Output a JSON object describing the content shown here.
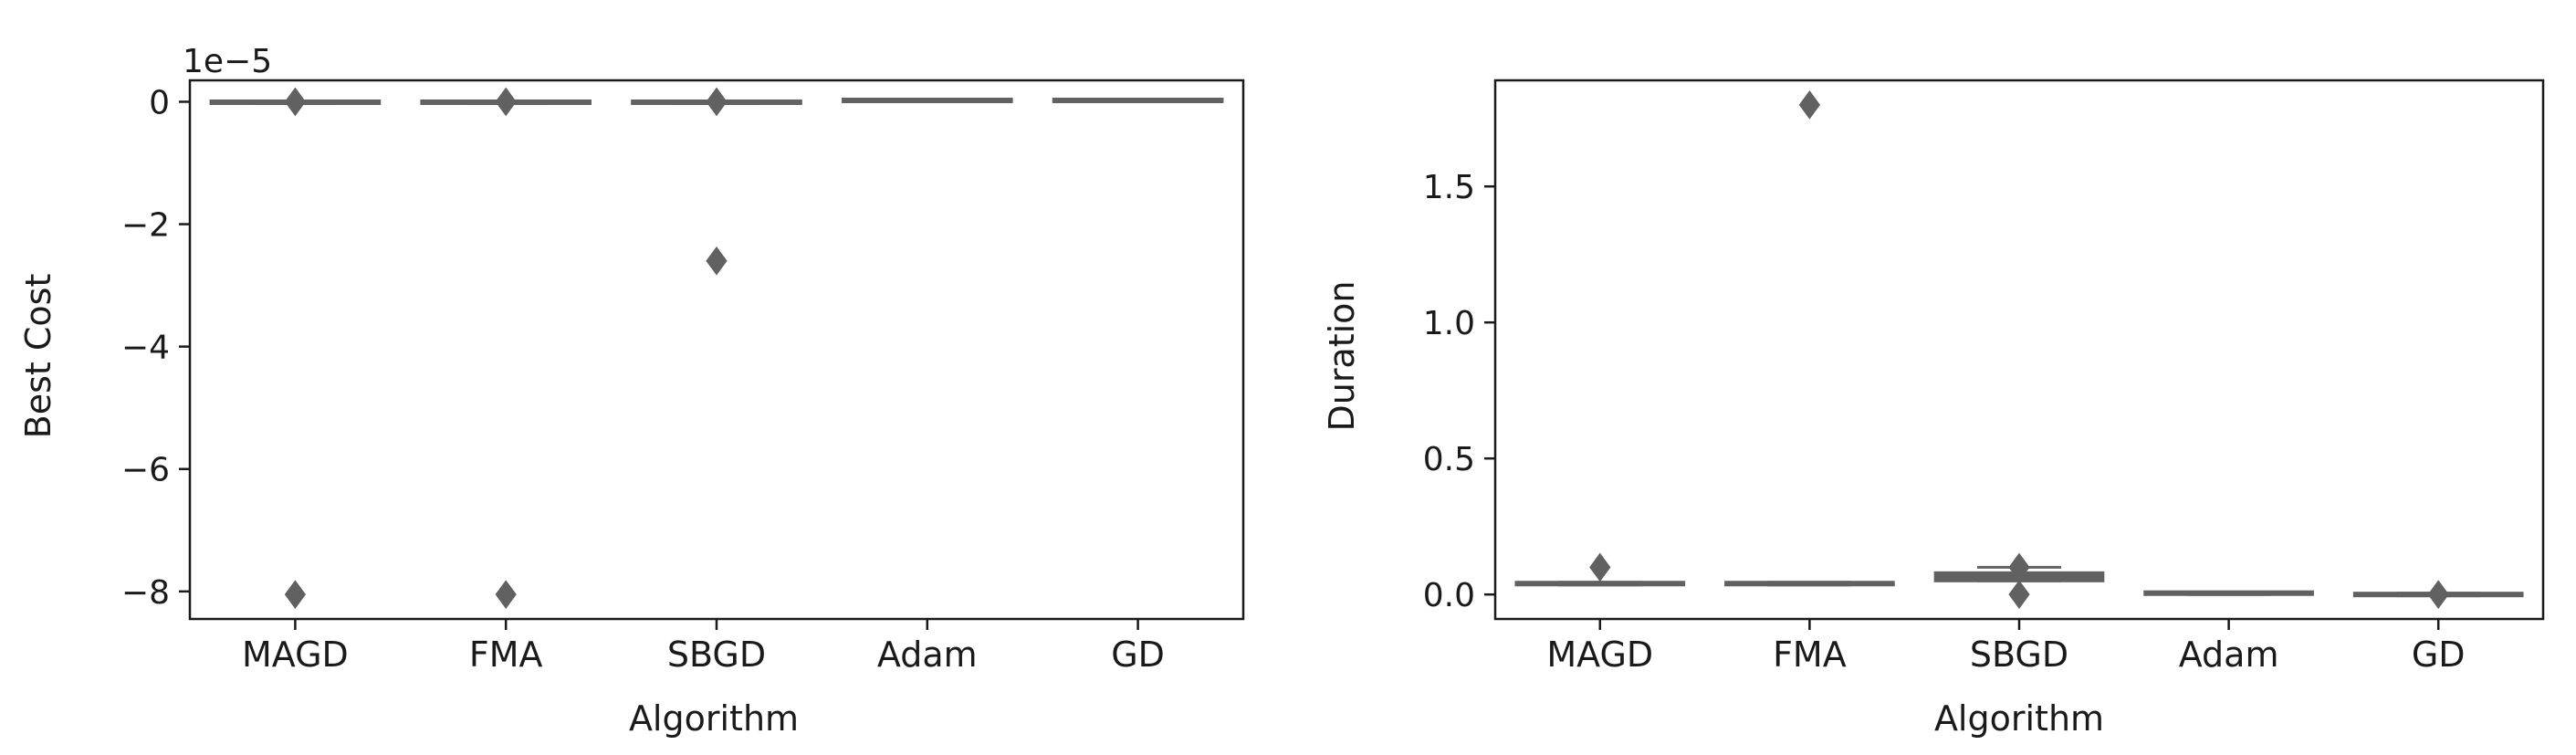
{
  "chart_data": [
    {
      "type": "box",
      "xlabel": "Algorithm",
      "ylabel": "Best Cost",
      "offset_text": "1e−5",
      "categories": [
        "MAGD",
        "FMA",
        "SBGD",
        "Adam",
        "GD"
      ],
      "ylim": [
        -8.45,
        0.35
      ],
      "yticks": [
        0,
        -2,
        -4,
        -6,
        -8
      ],
      "ytick_labels": [
        "0",
        "−2",
        "−4",
        "−6",
        "−8"
      ],
      "boxes": [
        {
          "category": "MAGD",
          "median": 0,
          "q1": -0.03,
          "q3": 0.0,
          "whisker_low": -0.03,
          "whisker_high": 0.0,
          "outliers": [
            0.0,
            -8.05
          ]
        },
        {
          "category": "FMA",
          "median": 0,
          "q1": -0.03,
          "q3": 0.0,
          "whisker_low": -0.03,
          "whisker_high": 0.0,
          "outliers": [
            0.0,
            -8.05
          ]
        },
        {
          "category": "SBGD",
          "median": 0,
          "q1": -0.03,
          "q3": 0.0,
          "whisker_low": -0.03,
          "whisker_high": 0.0,
          "outliers": [
            0.0,
            -2.6
          ]
        },
        {
          "category": "Adam",
          "median": 0,
          "q1": 0,
          "q3": 0,
          "whisker_low": 0,
          "whisker_high": 0,
          "outliers": []
        },
        {
          "category": "GD",
          "median": 0,
          "q1": 0,
          "q3": 0,
          "whisker_low": 0,
          "whisker_high": 0,
          "outliers": []
        }
      ],
      "color": "#616161"
    },
    {
      "type": "box",
      "xlabel": "Algorithm",
      "ylabel": "Duration",
      "offset_text": "",
      "categories": [
        "MAGD",
        "FMA",
        "SBGD",
        "Adam",
        "GD"
      ],
      "ylim": [
        -0.09,
        1.89
      ],
      "yticks": [
        0.0,
        0.5,
        1.0,
        1.5
      ],
      "ytick_labels": [
        "0.0",
        "0.5",
        "1.0",
        "1.5"
      ],
      "boxes": [
        {
          "category": "MAGD",
          "median": 0.04,
          "q1": 0.035,
          "q3": 0.045,
          "whisker_low": 0.035,
          "whisker_high": 0.045,
          "outliers": [
            0.1
          ]
        },
        {
          "category": "FMA",
          "median": 0.04,
          "q1": 0.035,
          "q3": 0.045,
          "whisker_low": 0.035,
          "whisker_high": 0.045,
          "outliers": [
            1.8
          ]
        },
        {
          "category": "SBGD",
          "median": 0.065,
          "q1": 0.05,
          "q3": 0.08,
          "whisker_low": 0.05,
          "whisker_high": 0.1,
          "outliers": [
            0.1,
            0.0
          ]
        },
        {
          "category": "Adam",
          "median": 0.0,
          "q1": 0.0,
          "q3": 0.0,
          "whisker_low": 0.0,
          "whisker_high": 0.0,
          "outliers": []
        },
        {
          "category": "GD",
          "median": 0.0,
          "q1": -0.005,
          "q3": 0.005,
          "whisker_low": -0.005,
          "whisker_high": 0.005,
          "outliers": [
            0.0
          ]
        }
      ],
      "color": "#616161"
    }
  ]
}
